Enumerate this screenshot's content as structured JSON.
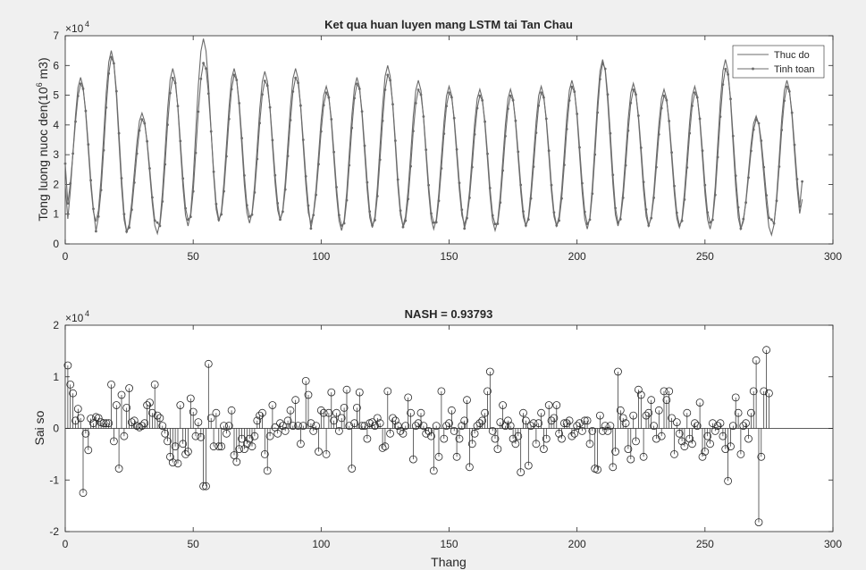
{
  "figure": {
    "background": "#f0f0f0",
    "axes_background": "#ffffff",
    "line_color": "#6b6b6b"
  },
  "chart_data": [
    {
      "type": "line",
      "title": "Ket qua huan luyen mang LSTM tai Tan Chau",
      "xlabel": "",
      "ylabel": "Tong luong nuoc den(10^6 m3)",
      "ylabel_parts": {
        "before": "Tong luong nuoc den(10",
        "sup": "6",
        "after": " m3)"
      },
      "y_exponent": {
        "base": "×10",
        "power": "4"
      },
      "xlim": [
        0,
        300
      ],
      "ylim": [
        0,
        7
      ],
      "xticks": [
        0,
        50,
        100,
        150,
        200,
        250,
        300
      ],
      "yticks": [
        0,
        1,
        2,
        3,
        4,
        5,
        6,
        7
      ],
      "grid": false,
      "legend_position": "top-right",
      "series": [
        {
          "name": "Thuc do",
          "marker": "none",
          "peaks": [
            5.6,
            6.5,
            4.4,
            5.9,
            6.9,
            5.9,
            5.8,
            5.9,
            5.3,
            5.6,
            6.0,
            5.5,
            5.3,
            5.2,
            5.2,
            5.3,
            5.5,
            6.2,
            5.4,
            5.2,
            5.3,
            6.2,
            4.3,
            5.5,
            5.8,
            6.0,
            5.7
          ],
          "troughs": [
            0.5,
            0.75,
            0.4,
            0.35,
            0.6,
            0.75,
            0.7,
            0.8,
            0.7,
            0.45,
            0.55,
            0.6,
            0.5,
            0.65,
            0.45,
            0.6,
            0.6,
            0.5,
            0.6,
            0.6,
            0.55,
            0.5,
            0.5,
            0.3,
            0.7,
            0.6,
            0.6,
            1.5
          ]
        },
        {
          "name": "Tinh toan",
          "marker": "dot",
          "peaks": [
            5.4,
            6.3,
            4.2,
            5.6,
            6.1,
            5.7,
            5.5,
            5.6,
            5.1,
            5.4,
            5.7,
            5.2,
            5.1,
            5.0,
            5.0,
            5.1,
            5.3,
            6.1,
            5.2,
            5.0,
            5.1,
            5.9,
            4.2,
            5.3,
            5.6,
            5.8,
            6.0
          ],
          "troughs": [
            1.2,
            0.7,
            0.4,
            0.4,
            0.7,
            0.8,
            0.8,
            0.9,
            0.8,
            0.5,
            0.6,
            0.6,
            0.55,
            0.7,
            0.5,
            0.65,
            0.6,
            0.6,
            0.65,
            0.7,
            0.6,
            0.6,
            0.7,
            0.5,
            0.8,
            0.8,
            0.7,
            2.1
          ]
        }
      ]
    },
    {
      "type": "stem",
      "title": "NASH = 0.93793",
      "xlabel": "Thang",
      "ylabel": "Sai so",
      "y_exponent": {
        "base": "×10",
        "power": "4"
      },
      "xlim": [
        0,
        300
      ],
      "ylim": [
        -2,
        2
      ],
      "xticks": [
        0,
        50,
        100,
        150,
        200,
        250,
        300
      ],
      "yticks": [
        -2,
        -1,
        0,
        1,
        2
      ],
      "grid": false,
      "values": [
        1.22,
        0.85,
        0.68,
        0.15,
        0.38,
        0.2,
        -1.25,
        -0.1,
        -0.42,
        0.19,
        0.1,
        0.22,
        0.2,
        0.12,
        0.1,
        0.1,
        0.1,
        0.85,
        -0.25,
        0.45,
        -0.78,
        0.65,
        -0.15,
        0.4,
        0.78,
        0.12,
        0.15,
        0.05,
        0.02,
        0.05,
        0.1,
        0.45,
        0.5,
        0.3,
        0.85,
        0.25,
        0.2,
        0.05,
        -0.1,
        -0.25,
        -0.55,
        -0.66,
        -0.35,
        -0.68,
        0.45,
        -0.3,
        -0.5,
        -0.45,
        0.58,
        0.32,
        -0.15,
        0.12,
        -0.17,
        -1.12,
        -1.12,
        1.25,
        0.2,
        -0.35,
        0.3,
        -0.35,
        -0.35,
        0.05,
        -0.1,
        0.05,
        0.35,
        -0.52,
        -0.65,
        -0.4,
        -0.2,
        -0.4,
        -0.3,
        -0.2,
        -0.35,
        -0.15,
        0.15,
        0.25,
        0.3,
        -0.5,
        -0.82,
        -0.15,
        0.45,
        0.02,
        -0.1,
        0.1,
        0.05,
        -0.05,
        0.15,
        0.35,
        0.05,
        0.55,
        0.05,
        -0.3,
        0.05,
        0.92,
        0.65,
        0.1,
        -0.05,
        0.05,
        -0.45,
        0.35,
        0.3,
        -0.5,
        0.3,
        0.7,
        0.15,
        0.3,
        -0.05,
        0.2,
        0.4,
        0.75,
        0.05,
        -0.78,
        0.1,
        0.4,
        0.7,
        0.05,
        0.05,
        -0.2,
        0.1,
        0.12,
        0.05,
        0.2,
        0.1,
        -0.38,
        -0.35,
        0.72,
        -0.1,
        0.2,
        0.15,
        0.05,
        -0.05,
        -0.1,
        0.05,
        0.6,
        0.3,
        -0.6,
        0.05,
        0.1,
        0.3,
        0.05,
        -0.1,
        -0.05,
        -0.15,
        -0.82,
        0.05,
        -0.55,
        0.72,
        -0.2,
        0.05,
        0.1,
        0.35,
        -0.05,
        -0.55,
        -0.2,
        0.05,
        0.15,
        0.55,
        -0.75,
        -0.3,
        -0.1,
        0.05,
        0.1,
        0.15,
        0.3,
        0.72,
        1.1,
        -0.05,
        -0.2,
        -0.4,
        0.12,
        0.45,
        0.05,
        0.15,
        0.05,
        -0.2,
        -0.3,
        -0.15,
        -0.85,
        0.3,
        0.15,
        -0.72,
        0.05,
        0.1,
        -0.3,
        0.1,
        0.3,
        -0.4,
        -0.2,
        0.45,
        0.15,
        0.2,
        0.45,
        -0.1,
        -0.2,
        0.1,
        0.1,
        0.15,
        -0.15,
        -0.1,
        0.05,
        0.1,
        -0.05,
        0.15,
        0.15,
        -0.3,
        -0.05,
        -0.78,
        -0.8,
        0.25,
        -0.05,
        0.05,
        -0.05,
        0.05,
        -0.75,
        -0.45,
        1.1,
        0.35,
        0.2,
        0.1,
        -0.4,
        -0.6,
        0.25,
        -0.25,
        0.75,
        0.65,
        -0.55,
        0.25,
        0.3,
        0.55,
        0.05,
        -0.2,
        0.35,
        -0.15,
        0.72,
        0.55,
        0.72,
        0.2,
        -0.5,
        0.12,
        -0.1,
        -0.25,
        -0.35,
        0.3,
        -0.2,
        -0.3,
        0.1,
        0.05,
        0.5,
        -0.55,
        -0.45,
        -0.15,
        -0.3,
        0.1,
        -0.05,
        0.05,
        0.1,
        -0.15,
        -0.4,
        -1.02,
        -0.35,
        0.05,
        0.6,
        0.3,
        -0.5,
        0.05,
        0.1,
        -0.2,
        0.3,
        0.72,
        1.32,
        -1.82,
        -0.55,
        0.72,
        1.52,
        0.68
      ],
      "marker": "open-circle"
    }
  ]
}
